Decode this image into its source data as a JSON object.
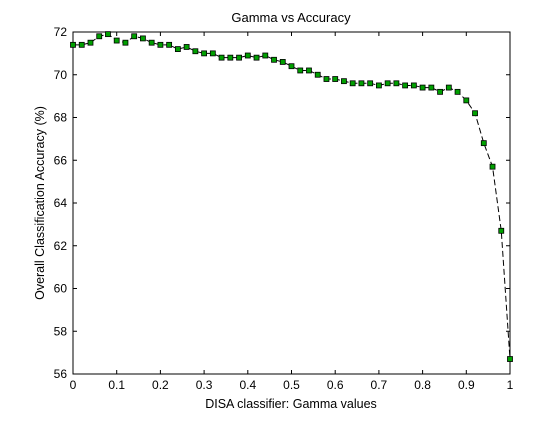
{
  "chart_data": {
    "type": "line",
    "title": "Gamma vs Accuracy",
    "xlabel": "DISA classifier: Gamma values",
    "ylabel": "Overall Classification Accuracy (%)",
    "xlim": [
      0,
      1
    ],
    "ylim": [
      56,
      72
    ],
    "xticks": [
      0,
      0.1,
      0.2,
      0.3,
      0.4,
      0.5,
      0.6,
      0.7,
      0.8,
      0.9,
      1
    ],
    "xtick_labels": [
      "0",
      "0.1",
      "0.2",
      "0.3",
      "0.4",
      "0.5",
      "0.6",
      "0.7",
      "0.8",
      "0.9",
      "1"
    ],
    "yticks": [
      56,
      58,
      60,
      62,
      64,
      66,
      68,
      70,
      72
    ],
    "ytick_labels": [
      "56",
      "58",
      "60",
      "62",
      "64",
      "66",
      "68",
      "70",
      "72"
    ],
    "grid": false,
    "line_color": "#000000",
    "line_style": "dashed",
    "marker": "square",
    "marker_color": "#00a000",
    "series": [
      {
        "x": [
          0,
          0.02,
          0.04,
          0.06,
          0.08,
          0.1,
          0.12,
          0.14,
          0.16,
          0.18,
          0.2,
          0.22,
          0.24,
          0.26,
          0.28,
          0.3,
          0.32,
          0.34,
          0.36,
          0.38,
          0.4,
          0.42,
          0.44,
          0.46,
          0.48,
          0.5,
          0.52,
          0.54,
          0.56,
          0.58,
          0.6,
          0.62,
          0.64,
          0.66,
          0.68,
          0.7,
          0.72,
          0.74,
          0.76,
          0.78,
          0.8,
          0.82,
          0.84,
          0.86,
          0.88,
          0.9,
          0.92,
          0.94,
          0.96,
          0.98,
          1.0
        ],
        "values": [
          71.4,
          71.4,
          71.5,
          71.8,
          71.9,
          71.6,
          71.5,
          71.8,
          71.7,
          71.5,
          71.4,
          71.4,
          71.2,
          71.3,
          71.1,
          71.0,
          71.0,
          70.8,
          70.8,
          70.8,
          70.9,
          70.8,
          70.9,
          70.7,
          70.6,
          70.4,
          70.2,
          70.2,
          70.0,
          69.8,
          69.8,
          69.7,
          69.6,
          69.6,
          69.6,
          69.5,
          69.6,
          69.6,
          69.5,
          69.5,
          69.4,
          69.4,
          69.2,
          69.4,
          69.2,
          68.8,
          68.2,
          66.8,
          65.7,
          62.7,
          56.7
        ]
      }
    ]
  }
}
